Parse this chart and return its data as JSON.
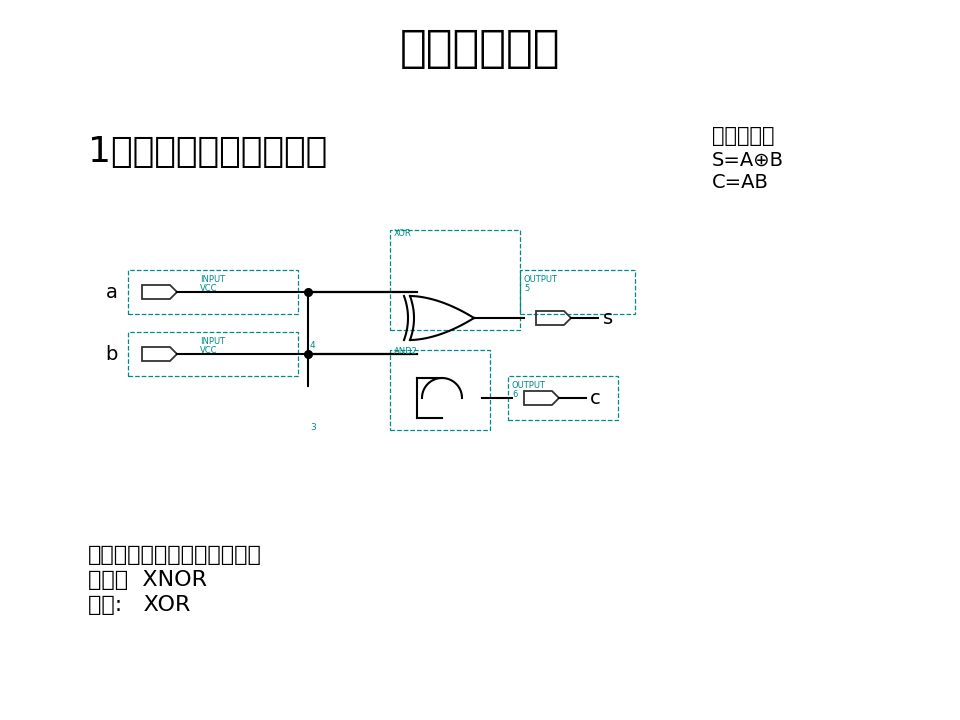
{
  "title": "上次实验讲评",
  "title_fontsize": 32,
  "subtitle": "1位半加器的原理图设计",
  "subtitle_fontsize": 26,
  "bg_color": "#ffffff",
  "text_color": "#000000",
  "circuit_color": "#000000",
  "teal_color": "#008B8B",
  "formula_title": "函数关系式",
  "formula_line1": "S=A⊕B",
  "formula_line2": "C=AB",
  "bottom_text": [
    "存在问题：同或和异或的不同",
    "同或：  XNOR",
    "异或:   XOR"
  ]
}
